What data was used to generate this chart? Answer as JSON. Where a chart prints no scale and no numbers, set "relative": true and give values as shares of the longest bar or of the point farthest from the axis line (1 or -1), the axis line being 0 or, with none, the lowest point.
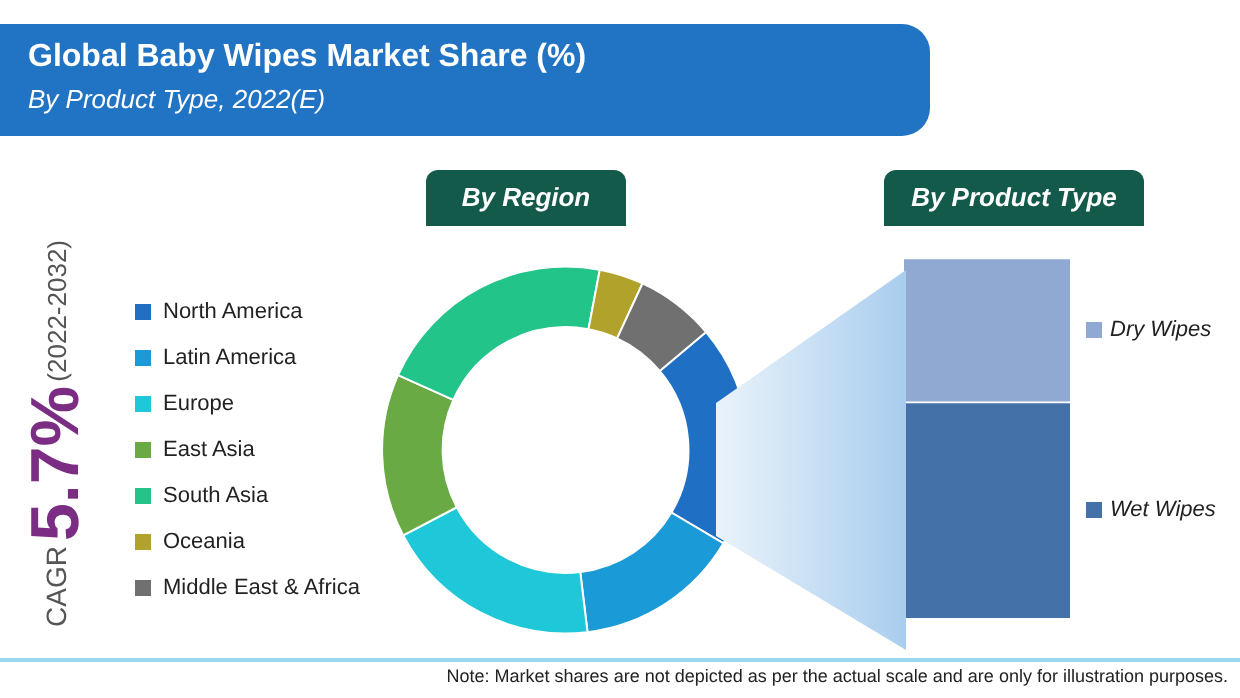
{
  "chart_data": [
    {
      "type": "other",
      "title": "Global Baby Wipes Market Share (%)",
      "subtitle": "By Product Type, 2022(E)",
      "annotations": [
        "CAGR",
        "5.7%",
        "(2022-2032)",
        "Note: Market shares are not depicted as per the actual scale and are only for illustration purposes."
      ]
    },
    {
      "type": "donut",
      "title": "By Region",
      "categories": [
        "North America",
        "Latin America",
        "Europe",
        "East Asia",
        "South Asia",
        "Oceania",
        "Middle East & Africa"
      ],
      "values": [
        19.6,
        14.6,
        19.2,
        14.4,
        21.3,
        3.9,
        7.0
      ],
      "colors": [
        "#1f6fc5",
        "#1a9ad6",
        "#1ec8d8",
        "#6aaa44",
        "#22c48a",
        "#b0a22a",
        "#707070"
      ],
      "legend": "left"
    },
    {
      "type": "bar",
      "title": "By Product Type",
      "stacked": true,
      "relative": true,
      "categories": [
        null
      ],
      "legend": "right",
      "series": [
        {
          "name": "Wet Wipes",
          "color": "#4472a8",
          "values": [
            0.6
          ]
        },
        {
          "name": "Dry Wipes",
          "color": "#8fa9d3",
          "values": [
            0.4
          ]
        }
      ]
    }
  ]
}
